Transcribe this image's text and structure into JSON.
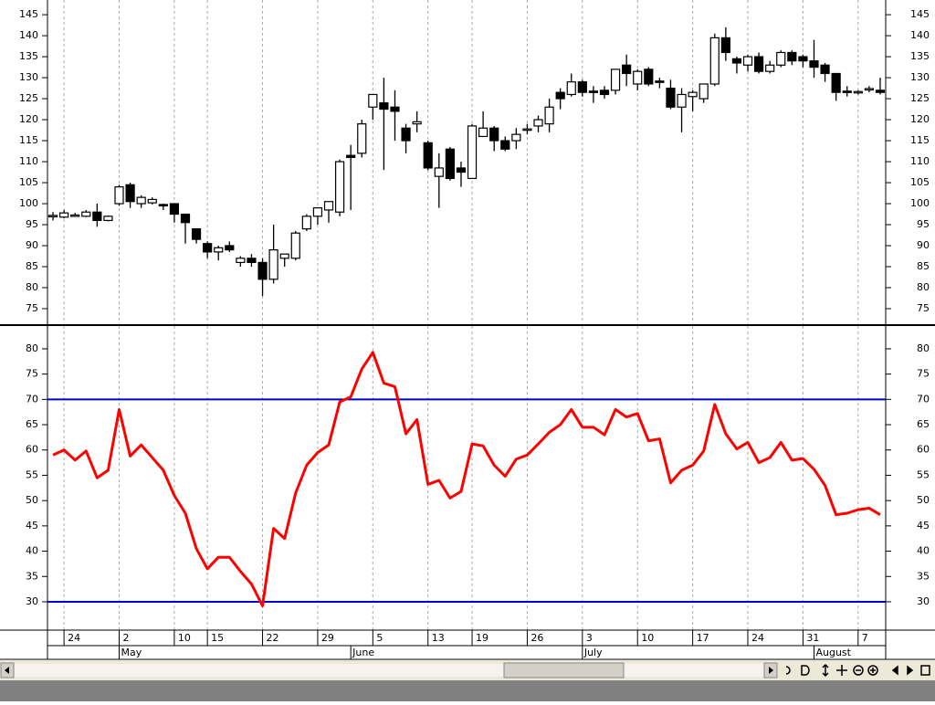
{
  "chart_data": [
    {
      "type": "candlestick",
      "categories": [
        null,
        null,
        null,
        null,
        null,
        null,
        null,
        null,
        null,
        null,
        null,
        null,
        null,
        null,
        null,
        null,
        null,
        null,
        null,
        null,
        null,
        null,
        null,
        null,
        null,
        null,
        null,
        null,
        null,
        null,
        null,
        null,
        null,
        null,
        null,
        null,
        null,
        null,
        null,
        null,
        null,
        null,
        null,
        null,
        null,
        null,
        null,
        null,
        null,
        null,
        null,
        null,
        null,
        null,
        null,
        null,
        null,
        null,
        null,
        null,
        null,
        null,
        null,
        null,
        null,
        null,
        null,
        null,
        null,
        null,
        null,
        null,
        null,
        null,
        null,
        null
      ],
      "open": [
        97,
        96.8,
        97.3,
        97,
        98,
        96,
        100,
        104.5,
        100,
        100.2,
        99.8,
        100,
        97.5,
        94,
        90.5,
        88.5,
        90,
        86,
        87,
        86,
        82,
        87,
        87,
        94,
        97,
        98.5,
        98,
        111.5,
        112,
        123,
        124,
        123,
        118,
        119,
        114.5,
        106.5,
        113,
        108.5,
        106,
        116,
        118,
        115,
        115,
        117.5,
        118.5,
        119,
        126.5,
        126,
        129,
        126.8,
        127,
        127,
        133,
        128.5,
        132,
        129.2,
        127.5,
        123,
        125.5,
        125,
        128.5,
        139.5,
        134.5,
        133,
        135,
        131.5,
        133,
        136,
        135,
        134,
        133,
        131,
        126.8,
        126.5,
        127.2,
        127
      ],
      "high": [
        98,
        98.5,
        97.8,
        98.5,
        100,
        97.2,
        104.5,
        105,
        102,
        101.5,
        100,
        100,
        97.5,
        94,
        91,
        90,
        91,
        87.5,
        88,
        87,
        95,
        88,
        93.5,
        97.5,
        99,
        100.5,
        110.5,
        114,
        120,
        126,
        130,
        127,
        119,
        122,
        115,
        112,
        113.5,
        110,
        119,
        122,
        118.5,
        116,
        118,
        119,
        121,
        125,
        127.5,
        131,
        129.5,
        128,
        128,
        132,
        135.5,
        132,
        132.5,
        130,
        129.5,
        127.5,
        127,
        128.5,
        140.5,
        142,
        135,
        135.5,
        136,
        134,
        136.5,
        136.5,
        135.5,
        139,
        133.5,
        131,
        128,
        127,
        128,
        130
      ],
      "low": [
        96,
        96.5,
        97,
        96.8,
        94.5,
        95.8,
        99.5,
        99,
        99,
        99.8,
        98.5,
        95.5,
        90.5,
        90.5,
        87,
        86.5,
        88.5,
        85,
        85,
        78,
        81,
        85,
        86.5,
        93.5,
        95,
        95.5,
        97,
        98.5,
        111,
        120,
        108,
        115,
        112,
        117,
        108,
        99,
        105.5,
        104,
        106,
        116,
        112.5,
        112.5,
        113,
        116.5,
        117,
        117,
        122.5,
        125.5,
        125.5,
        124,
        125,
        126,
        128,
        127,
        128,
        127.5,
        122.5,
        117,
        122,
        124,
        128,
        134,
        131,
        131.5,
        131,
        131,
        132.5,
        133,
        132.5,
        130,
        129,
        124.5,
        125.5,
        126,
        126.5,
        126
      ],
      "close": [
        97.2,
        97.8,
        97.3,
        98,
        96,
        97,
        104,
        100.5,
        101.5,
        101,
        99.5,
        97.5,
        95.5,
        91.5,
        88.5,
        89.5,
        89,
        87,
        86,
        82,
        89,
        88,
        93,
        97,
        99,
        100.5,
        110,
        111,
        119,
        126,
        122.5,
        122,
        115,
        119.5,
        108.5,
        108.5,
        106,
        107.5,
        118.5,
        118,
        115,
        113,
        116.5,
        117.8,
        120,
        123,
        125,
        129,
        126.5,
        126.5,
        126,
        132,
        131,
        131.5,
        128.5,
        129,
        123,
        126,
        126.5,
        128.5,
        139.5,
        136,
        133.5,
        135,
        131.5,
        133,
        136,
        134,
        134,
        132.5,
        131,
        126.5,
        126.5,
        126.7,
        127.4,
        126.5
      ],
      "up_color": "#ffffff",
      "down_color": "#000000",
      "line_color": "#000000",
      "ylim": [
        71.3,
        148.5
      ],
      "yticks": [
        75,
        80,
        85,
        90,
        95,
        100,
        105,
        110,
        115,
        120,
        125,
        130,
        135,
        140,
        145
      ],
      "xlim": [
        -0.5,
        75.5
      ]
    },
    {
      "type": "line",
      "values": [
        59,
        60,
        58,
        59.8,
        54.5,
        56,
        68,
        58.8,
        61,
        58.5,
        56,
        51,
        47.5,
        40.5,
        36.5,
        38.8,
        38.8,
        36,
        33.5,
        29.2,
        44.5,
        42.5,
        51.5,
        57,
        59.5,
        61,
        69.5,
        70.5,
        76,
        79.3,
        73.2,
        72.5,
        63.2,
        66,
        53.2,
        54,
        50.5,
        51.8,
        61.2,
        60.8,
        57,
        54.8,
        58.2,
        59,
        61.2,
        63.5,
        65,
        68,
        64.5,
        64.5,
        63,
        68,
        66.5,
        67.2,
        61.8,
        62.2,
        53.5,
        56,
        57,
        59.8,
        69,
        63.2,
        60.2,
        61.5,
        57.5,
        58.5,
        61.5,
        58,
        58.3,
        56.2,
        53,
        47.2,
        47.5,
        48.2,
        48.5,
        47.2
      ],
      "color": "#ff0000",
      "hlines": [
        {
          "value": 70,
          "color": "#0000cc"
        },
        {
          "value": 30,
          "color": "#0000cc"
        }
      ],
      "ylim": [
        24.4,
        84.5
      ],
      "yticks": [
        30,
        35,
        40,
        45,
        50,
        55,
        60,
        65,
        70,
        75,
        80
      ],
      "xlim": [
        -0.5,
        75.5
      ],
      "xticks": [
        {
          "value": 1,
          "label": "24"
        },
        {
          "value": 6,
          "label": "2"
        },
        {
          "value": 11,
          "label": "10"
        },
        {
          "value": 14,
          "label": "15"
        },
        {
          "value": 19,
          "label": "22"
        },
        {
          "value": 24,
          "label": "29"
        },
        {
          "value": 29,
          "label": "5"
        },
        {
          "value": 34,
          "label": "13"
        },
        {
          "value": 38,
          "label": "19"
        },
        {
          "value": 43,
          "label": "26"
        },
        {
          "value": 48,
          "label": "3"
        },
        {
          "value": 53,
          "label": "10"
        },
        {
          "value": 58,
          "label": "17"
        },
        {
          "value": 63,
          "label": "24"
        },
        {
          "value": 68,
          "label": "31"
        },
        {
          "value": 73,
          "label": "7"
        }
      ],
      "xticks_major": [
        {
          "value": 6,
          "label": "May"
        },
        {
          "value": 27,
          "label": "June"
        },
        {
          "value": 48,
          "label": "July"
        },
        {
          "value": 69,
          "label": "August"
        }
      ],
      "grid": true
    }
  ]
}
